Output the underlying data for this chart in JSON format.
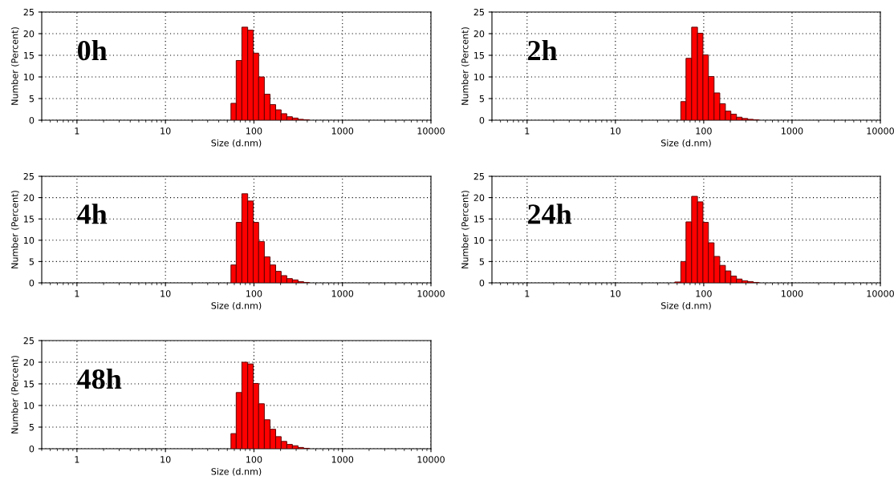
{
  "chart_data": [
    {
      "type": "histogram",
      "bins": [
        55,
        63,
        73,
        85,
        98,
        113,
        131,
        152,
        176,
        203,
        235,
        272,
        315,
        364,
        422
      ],
      "values": [
        3.9,
        13.8,
        21.5,
        20.8,
        15.5,
        10.0,
        6.0,
        3.6,
        2.4,
        1.5,
        0.8,
        0.5,
        0.2,
        0.1
      ],
      "color": "#ff0000",
      "xlabel": "Size (d.nm)",
      "ylabel": "Number (Percent)",
      "xlim": [
        0.4,
        10000
      ],
      "xticks": [
        1,
        10,
        100,
        1000,
        10000
      ],
      "ylim": [
        0,
        25
      ],
      "yticks": [
        0,
        5,
        10,
        15,
        20,
        25
      ],
      "log": "x",
      "grid": true,
      "annotations": [
        "0h"
      ]
    },
    {
      "type": "histogram",
      "bins": [
        55,
        63,
        73,
        85,
        98,
        113,
        131,
        152,
        176,
        203,
        235,
        272,
        315,
        364,
        422
      ],
      "values": [
        4.3,
        14.3,
        21.5,
        20.1,
        15.1,
        10.1,
        6.3,
        3.8,
        2.1,
        1.4,
        0.7,
        0.4,
        0.2,
        0.1
      ],
      "color": "#ff0000",
      "xlabel": "Size (d.nm)",
      "ylabel": "Number (Percent)",
      "xlim": [
        0.4,
        10000
      ],
      "xticks": [
        1,
        10,
        100,
        1000,
        10000
      ],
      "ylim": [
        0,
        25
      ],
      "yticks": [
        0,
        5,
        10,
        15,
        20,
        25
      ],
      "log": "x",
      "grid": true,
      "annotations": [
        "2h"
      ]
    },
    {
      "type": "histogram",
      "bins": [
        55,
        63,
        73,
        85,
        98,
        113,
        131,
        152,
        176,
        203,
        235,
        272,
        315,
        364,
        422
      ],
      "values": [
        4.2,
        14.2,
        20.9,
        19.2,
        14.2,
        9.7,
        6.1,
        4.2,
        2.7,
        1.7,
        1.0,
        0.7,
        0.3,
        0.1
      ],
      "color": "#ff0000",
      "xlabel": "Size (d.nm)",
      "ylabel": "Number (Percent)",
      "xlim": [
        0.4,
        10000
      ],
      "xticks": [
        1,
        10,
        100,
        1000,
        10000
      ],
      "ylim": [
        0,
        25
      ],
      "yticks": [
        0,
        5,
        10,
        15,
        20,
        25
      ],
      "log": "x",
      "grid": true,
      "annotations": [
        "4h"
      ]
    },
    {
      "type": "histogram",
      "bins": [
        47,
        55,
        63,
        73,
        85,
        98,
        113,
        131,
        152,
        176,
        203,
        235,
        272,
        315,
        364,
        422
      ],
      "values": [
        0.2,
        5.0,
        14.3,
        20.3,
        19.0,
        14.2,
        9.4,
        6.2,
        4.1,
        2.8,
        1.6,
        0.9,
        0.5,
        0.3,
        0.1
      ],
      "color": "#ff0000",
      "xlabel": "Size (d.nm)",
      "ylabel": "Number (Percent)",
      "xlim": [
        0.4,
        10000
      ],
      "xticks": [
        1,
        10,
        100,
        1000,
        10000
      ],
      "ylim": [
        0,
        25
      ],
      "yticks": [
        0,
        5,
        10,
        15,
        20,
        25
      ],
      "log": "x",
      "grid": true,
      "annotations": [
        "24h"
      ]
    },
    {
      "type": "histogram",
      "bins": [
        55,
        63,
        73,
        85,
        98,
        113,
        131,
        152,
        176,
        203,
        235,
        272,
        315,
        364,
        422
      ],
      "values": [
        3.5,
        13.0,
        20.0,
        19.6,
        15.1,
        10.4,
        6.7,
        4.5,
        2.8,
        1.7,
        1.0,
        0.7,
        0.3,
        0.1
      ],
      "color": "#ff0000",
      "xlabel": "Size (d.nm)",
      "ylabel": "Number (Percent)",
      "xlim": [
        0.4,
        10000
      ],
      "xticks": [
        1,
        10,
        100,
        1000,
        10000
      ],
      "ylim": [
        0,
        25
      ],
      "yticks": [
        0,
        5,
        10,
        15,
        20,
        25
      ],
      "log": "x",
      "grid": true,
      "annotations": [
        "48h"
      ]
    }
  ]
}
